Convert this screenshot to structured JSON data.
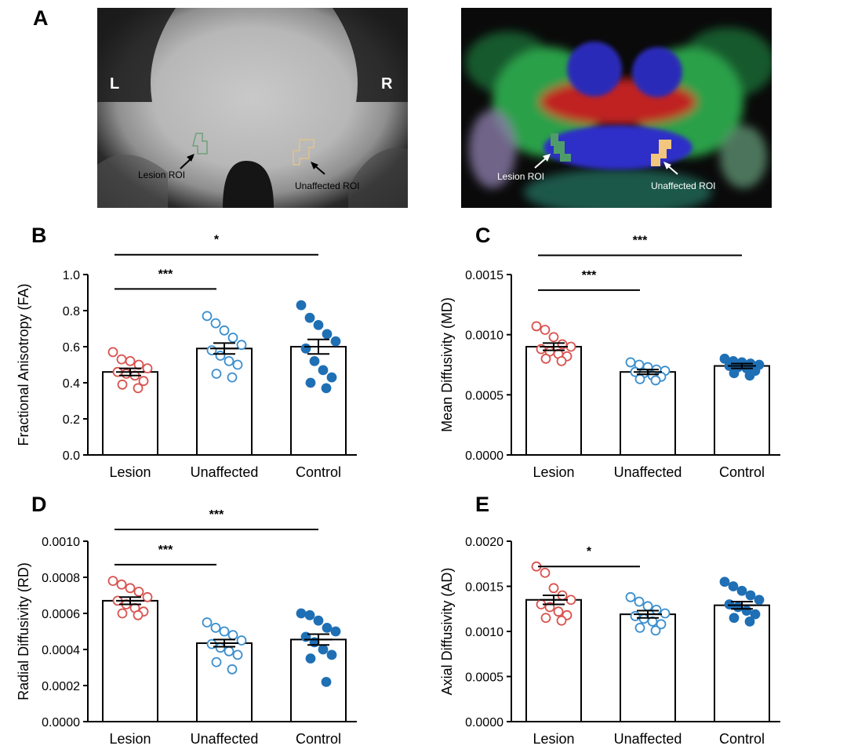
{
  "panel_letters": {
    "a": "A",
    "b": "B",
    "c": "C",
    "d": "D",
    "e": "E"
  },
  "images": {
    "mri": {
      "left_marker": "L",
      "right_marker": "R",
      "lesion_label": "Lesion ROI",
      "unaffected_label": "Unaffected ROI"
    },
    "dti": {
      "lesion_label": "Lesion ROI",
      "unaffected_label": "Unaffected ROI"
    }
  },
  "colors": {
    "lesion": "#d9534f",
    "unaffected": "#3b8fcf",
    "control": "#1f6fb5"
  },
  "chart_data": [
    {
      "panel": "B",
      "type": "bar",
      "ylabel": "Fractional Anisotropy (FA)",
      "categories": [
        "Lesion",
        "Unaffected",
        "Control"
      ],
      "ylim": [
        0,
        1.0
      ],
      "ticks": [
        "0.0",
        "0.2",
        "0.4",
        "0.6",
        "0.8",
        "1.0"
      ],
      "tick_values": [
        0,
        0.2,
        0.4,
        0.6,
        0.8,
        1.0
      ],
      "means": [
        0.46,
        0.59,
        0.6
      ],
      "sem": [
        0.02,
        0.03,
        0.04
      ],
      "points": [
        [
          0.57,
          0.53,
          0.52,
          0.5,
          0.48,
          0.46,
          0.45,
          0.44,
          0.41,
          0.39,
          0.37
        ],
        [
          0.77,
          0.73,
          0.69,
          0.65,
          0.61,
          0.58,
          0.55,
          0.52,
          0.5,
          0.45,
          0.43
        ],
        [
          0.83,
          0.76,
          0.72,
          0.67,
          0.63,
          0.59,
          0.52,
          0.47,
          0.43,
          0.4,
          0.37
        ]
      ],
      "filled": [
        false,
        false,
        true
      ],
      "brackets": [
        {
          "from": 0,
          "to": 1,
          "label": "***",
          "y": 0.92
        },
        {
          "from": 0,
          "to": 2,
          "label": "*",
          "y": 1.11
        }
      ]
    },
    {
      "panel": "C",
      "type": "bar",
      "ylabel": "Mean Diffusivity (MD)",
      "categories": [
        "Lesion",
        "Unaffected",
        "Control"
      ],
      "ylim": [
        0,
        0.0015
      ],
      "ticks": [
        "0.0000",
        "0.0005",
        "0.0010",
        "0.0015"
      ],
      "tick_values": [
        0,
        0.0005,
        0.001,
        0.0015
      ],
      "means": [
        0.0009,
        0.00069,
        0.00074
      ],
      "sem": [
        3e-05,
        2e-05,
        2e-05
      ],
      "points": [
        [
          0.00107,
          0.00104,
          0.00098,
          0.00092,
          0.0009,
          0.00088,
          0.00086,
          0.00084,
          0.00082,
          0.0008,
          0.00078
        ],
        [
          0.00077,
          0.00075,
          0.00073,
          0.00071,
          0.0007,
          0.00069,
          0.00068,
          0.00066,
          0.00065,
          0.00063,
          0.00062
        ],
        [
          0.0008,
          0.00078,
          0.00077,
          0.00076,
          0.00075,
          0.00074,
          0.00073,
          0.00072,
          0.0007,
          0.00068,
          0.00066
        ]
      ],
      "filled": [
        false,
        false,
        true
      ],
      "brackets": [
        {
          "from": 0,
          "to": 1,
          "label": "***",
          "y": 0.00137
        },
        {
          "from": 0,
          "to": 2,
          "label": "***",
          "y": 0.00166
        }
      ]
    },
    {
      "panel": "D",
      "type": "bar",
      "ylabel": "Radial Diffusivity (RD)",
      "categories": [
        "Lesion",
        "Unaffected",
        "Control"
      ],
      "ylim": [
        0,
        0.001
      ],
      "ticks": [
        "0.0000",
        "0.0002",
        "0.0004",
        "0.0006",
        "0.0008",
        "0.0010"
      ],
      "tick_values": [
        0,
        0.0002,
        0.0004,
        0.0006,
        0.0008,
        0.001
      ],
      "means": [
        0.00067,
        0.000435,
        0.000455
      ],
      "sem": [
        2e-05,
        2e-05,
        3e-05
      ],
      "points": [
        [
          0.00078,
          0.00076,
          0.00074,
          0.00072,
          0.00069,
          0.00067,
          0.00065,
          0.00063,
          0.00061,
          0.0006,
          0.00059
        ],
        [
          0.00055,
          0.00052,
          0.0005,
          0.00048,
          0.00045,
          0.00043,
          0.00041,
          0.00039,
          0.00037,
          0.00033,
          0.00029
        ],
        [
          0.0006,
          0.00059,
          0.00056,
          0.00052,
          0.0005,
          0.00047,
          0.00044,
          0.0004,
          0.00037,
          0.00035,
          0.00022
        ]
      ],
      "filled": [
        false,
        false,
        true
      ],
      "brackets": [
        {
          "from": 0,
          "to": 1,
          "label": "***",
          "y": 0.00087
        },
        {
          "from": 0,
          "to": 2,
          "label": "***",
          "y": 0.001065
        }
      ]
    },
    {
      "panel": "E",
      "type": "bar",
      "ylabel": "Axial Diffusivity (AD)",
      "categories": [
        "Lesion",
        "Unaffected",
        "Control"
      ],
      "ylim": [
        0,
        0.002
      ],
      "ticks": [
        "0.0000",
        "0.0005",
        "0.0010",
        "0.0015",
        "0.0020"
      ],
      "tick_values": [
        0,
        0.0005,
        0.001,
        0.0015,
        0.002
      ],
      "means": [
        0.00135,
        0.00119,
        0.00129
      ],
      "sem": [
        5e-05,
        4e-05,
        4e-05
      ],
      "points": [
        [
          0.00172,
          0.00165,
          0.00148,
          0.0014,
          0.00135,
          0.0013,
          0.00127,
          0.00122,
          0.00118,
          0.00115,
          0.00112
        ],
        [
          0.00138,
          0.00133,
          0.00128,
          0.00124,
          0.0012,
          0.00117,
          0.00114,
          0.00111,
          0.00108,
          0.00104,
          0.00101
        ],
        [
          0.00155,
          0.0015,
          0.00145,
          0.0014,
          0.00135,
          0.0013,
          0.00127,
          0.00123,
          0.00119,
          0.00115,
          0.00111
        ]
      ],
      "filled": [
        false,
        false,
        true
      ],
      "brackets": [
        {
          "from": 0,
          "to": 1,
          "label": "*",
          "y": 0.00172
        }
      ]
    }
  ]
}
